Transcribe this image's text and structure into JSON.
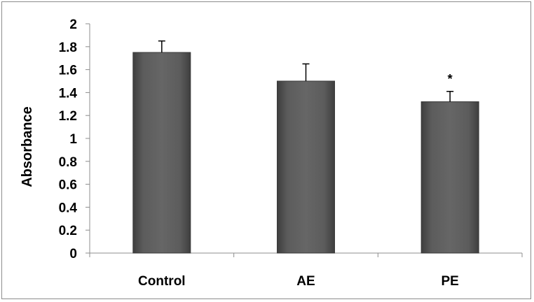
{
  "chart_data": {
    "type": "bar",
    "categories": [
      "Control",
      "AE",
      "PE"
    ],
    "values": [
      1.75,
      1.5,
      1.32
    ],
    "errors": [
      0.1,
      0.15,
      0.09
    ],
    "annotations": [
      "",
      "",
      "*"
    ],
    "ylabel": "Absorbance",
    "xlabel": "",
    "ylim": [
      0,
      2
    ],
    "yticks": [
      0,
      0.2,
      0.4,
      0.6,
      0.8,
      1,
      1.2,
      1.4,
      1.6,
      1.8,
      2
    ],
    "ytick_labels": [
      "0",
      "0.2",
      "0.4",
      "0.6",
      "0.8",
      "1",
      "1.2",
      "1.4",
      "1.6",
      "1.8",
      "2"
    ],
    "grid": false,
    "bar_color": "#5a5a5a",
    "bar_edge_color": "#3a3a3a",
    "error_color": "#000000"
  }
}
